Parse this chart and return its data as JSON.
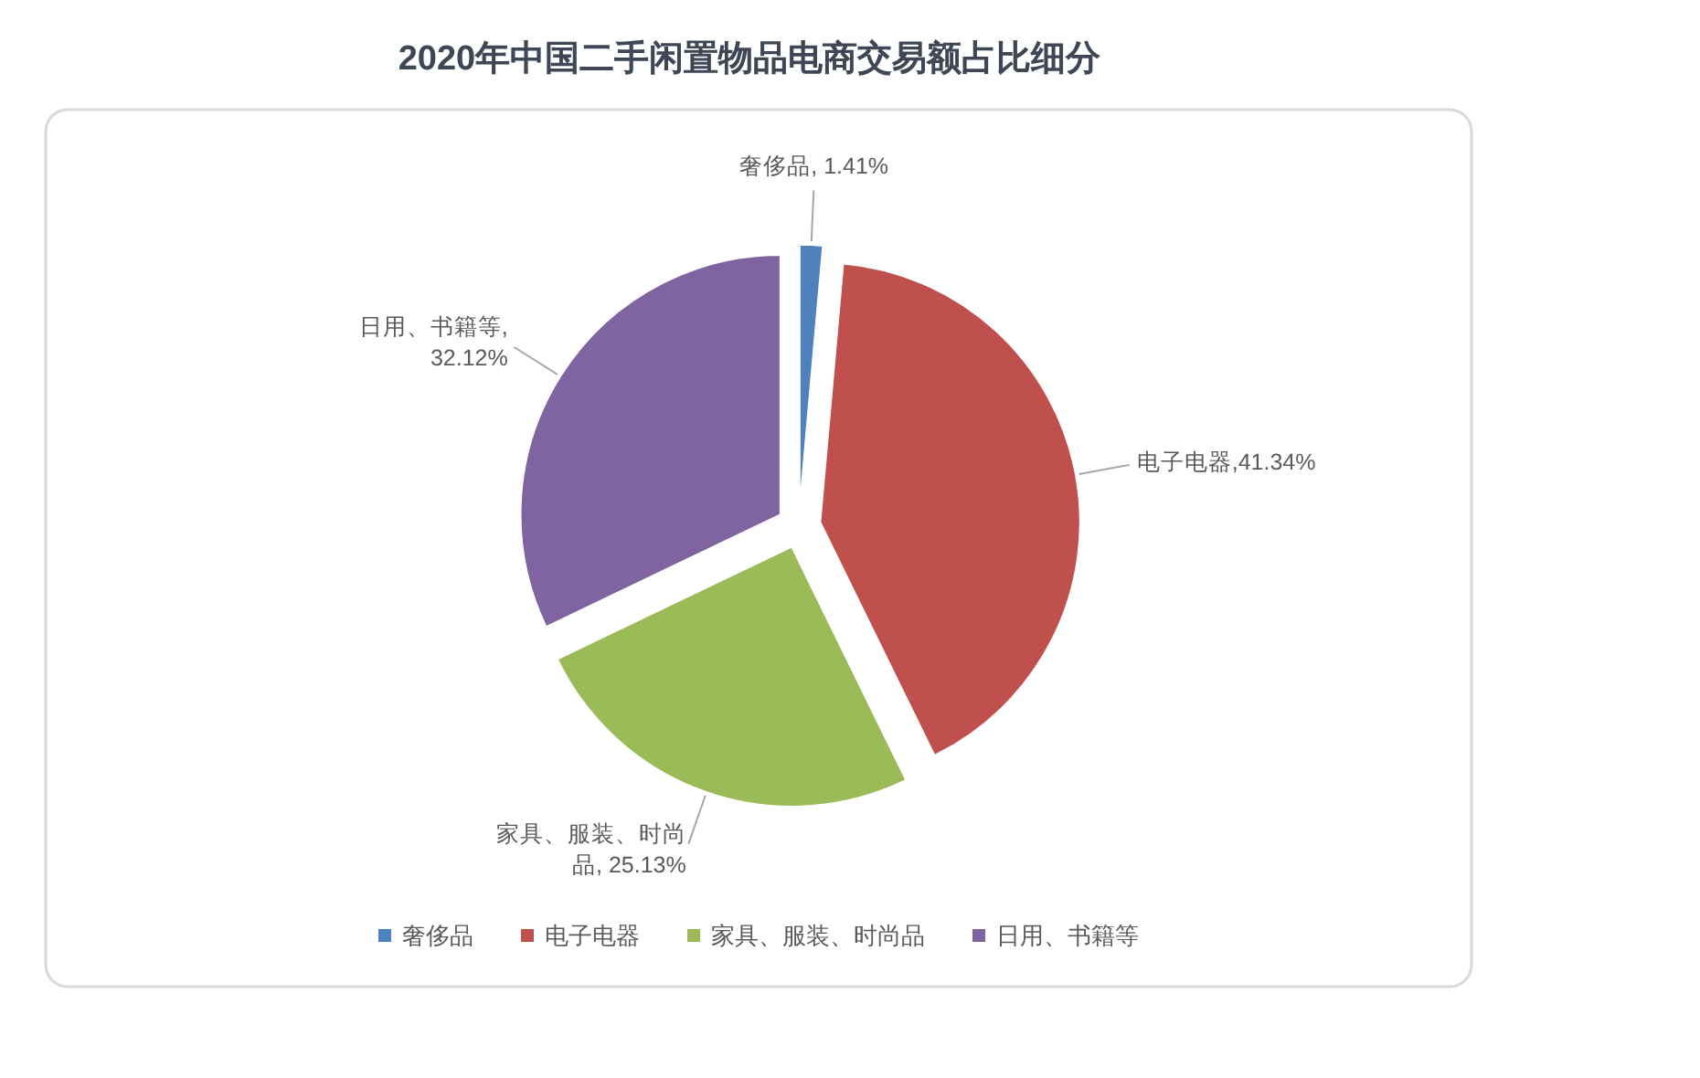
{
  "chart_data": {
    "type": "pie",
    "title": "2020年中国二手闲置物品电商交易额占比细分",
    "categories": [
      "奢侈品",
      "电子电器",
      "家具、服装、时尚品",
      "日用、书籍等"
    ],
    "values": [
      1.41,
      41.34,
      25.13,
      32.12
    ],
    "colors": [
      "#4f81bd",
      "#c0504d",
      "#9bbb59",
      "#8064a2"
    ],
    "value_labels": [
      "奢侈品, 1.41%",
      "电子电器,41.34%",
      "家具、服装、时尚品, 25.13%",
      "日用、书籍等, 32.12%"
    ],
    "legend": "bottom"
  }
}
